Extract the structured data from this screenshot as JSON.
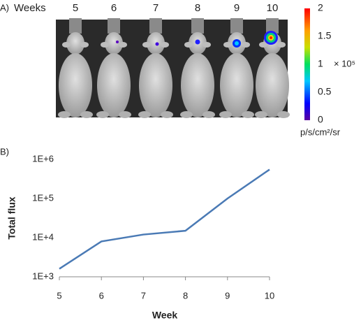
{
  "panel_a": {
    "label": "A)",
    "weeks_label": "Weeks",
    "weeks": [
      "5",
      "6",
      "7",
      "8",
      "9",
      "10"
    ],
    "colorbar": {
      "ticks": [
        0,
        0.5,
        1,
        1.5,
        2
      ],
      "multiplier": "× 10⁵",
      "unit": "p/s/cm²/sr"
    }
  },
  "panel_b": {
    "label": "B)"
  },
  "chart_data": {
    "type": "line",
    "x": [
      5,
      6,
      7,
      8,
      9,
      10
    ],
    "values": [
      1600,
      8000,
      12000,
      15000,
      100000,
      550000
    ],
    "color": "#4a7ab5",
    "xlabel": "Week",
    "ylabel": "Total flux",
    "xlim": [
      5,
      10
    ],
    "xticks": [
      5,
      6,
      7,
      8,
      9,
      10
    ],
    "ylim": [
      1000,
      1000000
    ],
    "ylog": true,
    "yticks": [
      {
        "value": 1000,
        "label": "1E+3"
      },
      {
        "value": 10000,
        "label": "1E+4"
      },
      {
        "value": 100000,
        "label": "1E+5"
      },
      {
        "value": 1000000,
        "label": "1E+6"
      }
    ]
  }
}
